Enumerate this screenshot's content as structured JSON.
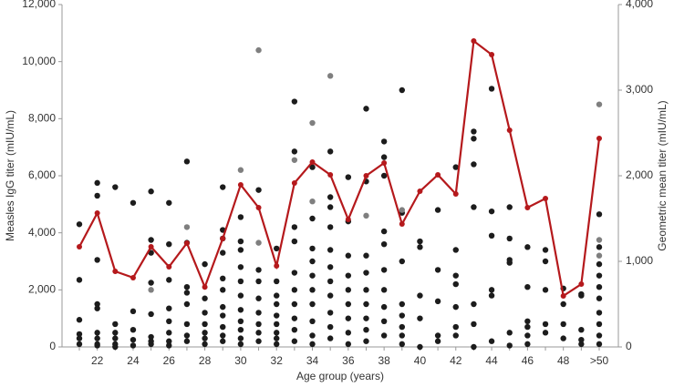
{
  "chart_data": {
    "type": "scatter",
    "ylabel": "Measles IgG titer (mIU/mL)",
    "y2label": "Geometric mean titer (mIU/mL)",
    "xlabel": "Age group (years)",
    "categories": [
      null,
      "22",
      null,
      "24",
      null,
      "26",
      null,
      "28",
      null,
      "30",
      null,
      "32",
      null,
      "34",
      null,
      "36",
      null,
      "38",
      null,
      "40",
      null,
      "42",
      null,
      "44",
      null,
      "46",
      null,
      "48",
      null,
      ">50"
    ],
    "ylim": [
      0,
      12000
    ],
    "yticks": [
      0,
      {
        "value": 2000,
        "label": "2,000"
      },
      {
        "value": 4000,
        "label": "4,000"
      },
      {
        "value": 6000,
        "label": "6,000"
      },
      {
        "value": 8000,
        "label": "8,000"
      },
      {
        "value": 10000,
        "label": "10,000"
      },
      {
        "value": 12000,
        "label": "12,000"
      }
    ],
    "y2lim": [
      0,
      4000
    ],
    "y2ticks": [
      0,
      {
        "value": 1000,
        "label": "1,000"
      },
      {
        "value": 2000,
        "label": "2,000"
      },
      {
        "value": 3000,
        "label": "3,000"
      },
      {
        "value": 4000,
        "label": "4,000"
      }
    ],
    "dot_color": "#1c1c1c",
    "gray_dot_color": "#7f7f7f",
    "dots": [
      [
        4300,
        2350,
        950,
        450,
        300,
        100
      ],
      [
        5750,
        5300,
        3050,
        1500,
        1350,
        500,
        300,
        100,
        50
      ],
      [
        5600,
        800,
        500,
        300,
        100,
        0
      ],
      [
        5050,
        1250,
        600,
        250,
        50
      ],
      [
        5450,
        3750,
        3300,
        2250,
        1150,
        350,
        200,
        100
      ],
      [
        5050,
        3600,
        2350,
        1350,
        900,
        500,
        200,
        50
      ],
      [
        6500,
        3650,
        2100,
        1900,
        1500,
        800,
        400,
        200
      ],
      [
        2900,
        1700,
        1200,
        800,
        500,
        300,
        100
      ],
      [
        5600,
        4100,
        3800,
        3300,
        2400,
        2000,
        1400,
        1100,
        700,
        400,
        200
      ],
      [
        4550,
        3700,
        3400,
        2800,
        2300,
        1800,
        1300,
        900,
        600,
        300,
        100
      ],
      [
        5500,
        2700,
        2300,
        1700,
        1200,
        800,
        500,
        200
      ],
      [
        3450,
        2300,
        1800,
        1500,
        1100,
        800,
        500,
        300,
        100
      ],
      [
        8600,
        6850,
        4200,
        3700,
        2600,
        2000,
        1500,
        1000,
        600,
        200
      ],
      [
        6300,
        4500,
        3450,
        3000,
        2500,
        2000,
        1500,
        900,
        400,
        100
      ],
      [
        6850,
        5250,
        4900,
        4200,
        3400,
        2800,
        2300,
        1800,
        1200,
        700,
        300
      ],
      [
        5950,
        4400,
        3200,
        2500,
        2000,
        1500,
        1000,
        500,
        100
      ],
      [
        8350,
        5800,
        3200,
        2600,
        2000,
        1500,
        1000,
        600,
        200
      ],
      [
        7200,
        6650,
        6000,
        4050,
        3600,
        2700,
        2000,
        1400,
        900,
        400
      ],
      [
        9000,
        4700,
        3000,
        1500,
        1100,
        700,
        400,
        100
      ],
      [
        3700,
        3500,
        1800,
        1000,
        0
      ],
      [
        4800,
        2700,
        1600,
        400,
        200
      ],
      [
        6300,
        3400,
        2500,
        2200,
        1400,
        700,
        400
      ],
      [
        7550,
        7300,
        6400,
        4900,
        1500,
        800,
        0
      ],
      [
        9050,
        4750,
        3900,
        2000,
        1800,
        200
      ],
      [
        4900,
        3800,
        3050,
        2950,
        500,
        50
      ],
      [
        3500,
        2100,
        900,
        700,
        400,
        100
      ],
      [
        3400,
        3000,
        2000,
        800,
        500
      ],
      [
        2050,
        1500,
        800,
        300
      ],
      [
        1850,
        1800,
        600,
        250,
        100
      ],
      [
        4650,
        3500,
        2900,
        2500,
        2100,
        1700,
        1200,
        800,
        400,
        100
      ]
    ],
    "gray_dots": [
      [],
      [],
      [],
      [],
      [
        2000
      ],
      [],
      [
        4200
      ],
      [],
      [],
      [
        6200
      ],
      [
        10400,
        3650
      ],
      [],
      [
        6550
      ],
      [
        7850,
        5100
      ],
      [
        9500
      ],
      [],
      [
        4600
      ],
      [],
      [
        4800
      ],
      [],
      [],
      [],
      [],
      [],
      [],
      [],
      [],
      [],
      [],
      [
        8500,
        3750,
        3200
      ]
    ],
    "line": {
      "axis": "y2",
      "color": "#b5191c",
      "values": [
        1170,
        1564,
        883,
        809,
        1170,
        936,
        1213,
        700,
        1266,
        1894,
        1628,
        947,
        1915,
        2160,
        2011,
        1489,
        2000,
        2149,
        1436,
        1819,
        2011,
        1787,
        3574,
        3415,
        2532,
        1628,
        1734,
        596,
        734,
        2436
      ]
    }
  }
}
